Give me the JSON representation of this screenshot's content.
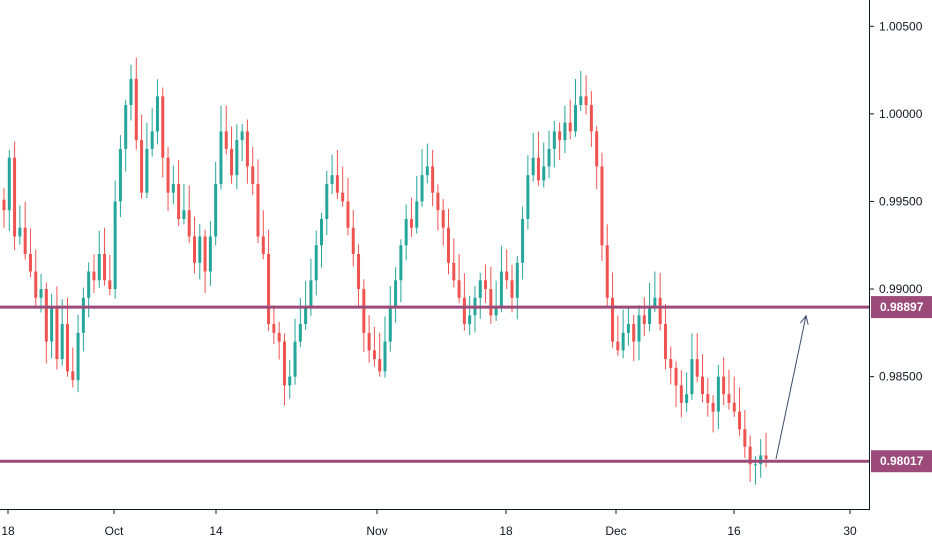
{
  "chart_data": {
    "type": "candlestick",
    "title": "",
    "xlabel": "",
    "ylabel": "",
    "ylim": [
      0.9775,
      1.0065
    ],
    "y_ticks": [
      "1.00500",
      "1.00000",
      "0.99500",
      "0.99000",
      "0.98500"
    ],
    "x_ticks": [
      "18",
      "Oct",
      "14",
      "Nov",
      "18",
      "Dec",
      "16",
      "30"
    ],
    "horizontal_levels": [
      {
        "value": 0.98897,
        "label": "0.98897"
      },
      {
        "value": 0.98017,
        "label": "0.98017"
      }
    ],
    "projection_arrow": {
      "from": 0.9803,
      "to": 0.9887
    },
    "colors": {
      "up": "#26a69a",
      "down": "#ef5350",
      "level": "#9c4a7a",
      "arrow": "#3b4a6b",
      "axis": "#131722"
    },
    "closes": [
      0.9945,
      0.9975,
      0.993,
      0.9935,
      0.992,
      0.991,
      0.9895,
      0.99,
      0.987,
      0.989,
      0.986,
      0.988,
      0.9853,
      0.9848,
      0.9875,
      0.9895,
      0.991,
      0.9905,
      0.992,
      0.9905,
      0.99,
      0.995,
      0.998,
      1.0005,
      1.002,
      0.9985,
      0.9955,
      0.998,
      0.999,
      1.001,
      0.9975,
      0.9955,
      0.996,
      0.994,
      0.9945,
      0.993,
      0.9915,
      0.993,
      0.991,
      0.993,
      0.996,
      0.999,
      0.998,
      0.9965,
      0.9985,
      0.999,
      0.997,
      0.996,
      0.993,
      0.992,
      0.988,
      0.9875,
      0.987,
      0.9845,
      0.985,
      0.987,
      0.988,
      0.989,
      0.9905,
      0.9925,
      0.994,
      0.996,
      0.9965,
      0.9955,
      0.995,
      0.9935,
      0.992,
      0.99,
      0.9875,
      0.9865,
      0.986,
      0.9853,
      0.987,
      0.989,
      0.9905,
      0.9925,
      0.994,
      0.9935,
      0.995,
      0.9965,
      0.997,
      0.9955,
      0.9945,
      0.9935,
      0.9915,
      0.9905,
      0.9895,
      0.988,
      0.9885,
      0.9895,
      0.9905,
      0.99,
      0.9885,
      0.989,
      0.991,
      0.9905,
      0.9895,
      0.9915,
      0.994,
      0.9965,
      0.9975,
      0.9962,
      0.997,
      0.998,
      0.999,
      0.9985,
      0.9995,
      0.999,
      1.0005,
      1.001,
      1.0005,
      0.999,
      0.997,
      0.9925,
      0.9895,
      0.987,
      0.9865,
      0.9875,
      0.988,
      0.987,
      0.9885,
      0.988,
      0.989,
      0.9895,
      0.988,
      0.986,
      0.9855,
      0.9845,
      0.9835,
      0.984,
      0.986,
      0.985,
      0.984,
      0.9835,
      0.983,
      0.985,
      0.984,
      0.9835,
      0.983,
      0.982,
      0.981,
      0.98,
      0.98,
      0.9805,
      0.9803
    ]
  }
}
